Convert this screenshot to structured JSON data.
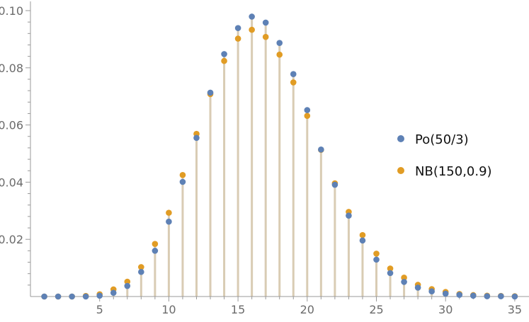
{
  "chart_data": {
    "type": "scatter",
    "title": "",
    "xlabel": "",
    "ylabel": "",
    "xlim": [
      0,
      35
    ],
    "ylim": [
      0,
      0.1
    ],
    "x_ticks": [
      5,
      10,
      15,
      20,
      25,
      30,
      35
    ],
    "y_ticks": [
      0.02,
      0.04,
      0.06,
      0.08,
      0.1
    ],
    "x_tick_labels": [
      "5",
      "10",
      "15",
      "20",
      "25",
      "30",
      "35"
    ],
    "y_tick_labels": [
      "0.02",
      "0.04",
      "0.06",
      "0.08",
      "0.10"
    ],
    "grid": false,
    "legend_position": "right",
    "stem_color": "#d9ccb4",
    "x": [
      1,
      2,
      3,
      4,
      5,
      6,
      7,
      8,
      9,
      10,
      11,
      12,
      13,
      14,
      15,
      16,
      17,
      18,
      19,
      20,
      21,
      22,
      23,
      24,
      25,
      26,
      27,
      28,
      29,
      30,
      31,
      32,
      33,
      34,
      35
    ],
    "series": [
      {
        "name": "Po(50/3)",
        "color": "#5e81b5",
        "values": [
          0.0,
          0.0,
          0.0,
          0.0,
          0.0003,
          0.0013,
          0.0037,
          0.0086,
          0.016,
          0.0262,
          0.0401,
          0.0555,
          0.0713,
          0.0848,
          0.0939,
          0.0979,
          0.0958,
          0.0887,
          0.0778,
          0.0652,
          0.0514,
          0.0391,
          0.0283,
          0.0196,
          0.0129,
          0.0082,
          0.0051,
          0.0031,
          0.0018,
          0.001,
          0.0006,
          0.0003,
          0.0001,
          0.0001,
          0.0
        ]
      },
      {
        "name": "NB(150,0.9)",
        "color": "#e19c24",
        "values": [
          0.0,
          0.0,
          0.0,
          0.0002,
          0.0008,
          0.0025,
          0.0052,
          0.0103,
          0.0184,
          0.0293,
          0.0425,
          0.0569,
          0.0708,
          0.0824,
          0.0902,
          0.0933,
          0.0908,
          0.0846,
          0.0749,
          0.0632,
          0.0513,
          0.0396,
          0.0296,
          0.0215,
          0.015,
          0.0098,
          0.0066,
          0.0041,
          0.0026,
          0.0016,
          0.0009,
          0.0005,
          0.0003,
          0.0002,
          0.0001
        ]
      }
    ]
  }
}
